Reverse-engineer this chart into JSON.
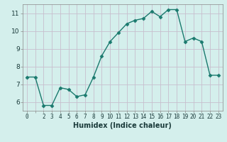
{
  "x": [
    0,
    1,
    2,
    3,
    4,
    5,
    6,
    7,
    8,
    9,
    10,
    11,
    12,
    13,
    14,
    15,
    16,
    17,
    18,
    19,
    20,
    21,
    22,
    23
  ],
  "y": [
    7.4,
    7.4,
    5.8,
    5.8,
    6.8,
    6.7,
    6.3,
    6.4,
    7.4,
    8.6,
    9.4,
    9.9,
    10.4,
    10.6,
    10.7,
    11.1,
    10.8,
    11.2,
    11.2,
    9.4,
    9.6,
    9.4,
    7.5,
    7.5
  ],
  "xlabel": "Humidex (Indice chaleur)",
  "ylabel": "",
  "xlim": [
    -0.5,
    23.5
  ],
  "ylim": [
    5.5,
    11.5
  ],
  "yticks": [
    6,
    7,
    8,
    9,
    10,
    11
  ],
  "xtick_labels": [
    "0",
    "",
    "2",
    "3",
    "4",
    "5",
    "6",
    "7",
    "8",
    "9",
    "10",
    "11",
    "12",
    "13",
    "14",
    "15",
    "16",
    "17",
    "18",
    "19",
    "20",
    "21",
    "22",
    "23"
  ],
  "line_color": "#1a7a6e",
  "marker": "D",
  "marker_size": 2.5,
  "line_width": 1.0,
  "axes_bg": "#d4efec",
  "fig_bg": "#d4efec",
  "grid_color": "#c8bece",
  "xlabel_fontsize": 7,
  "xlabel_fontweight": "bold",
  "tick_fontsize": 5.5,
  "ytick_fontsize": 6.5
}
